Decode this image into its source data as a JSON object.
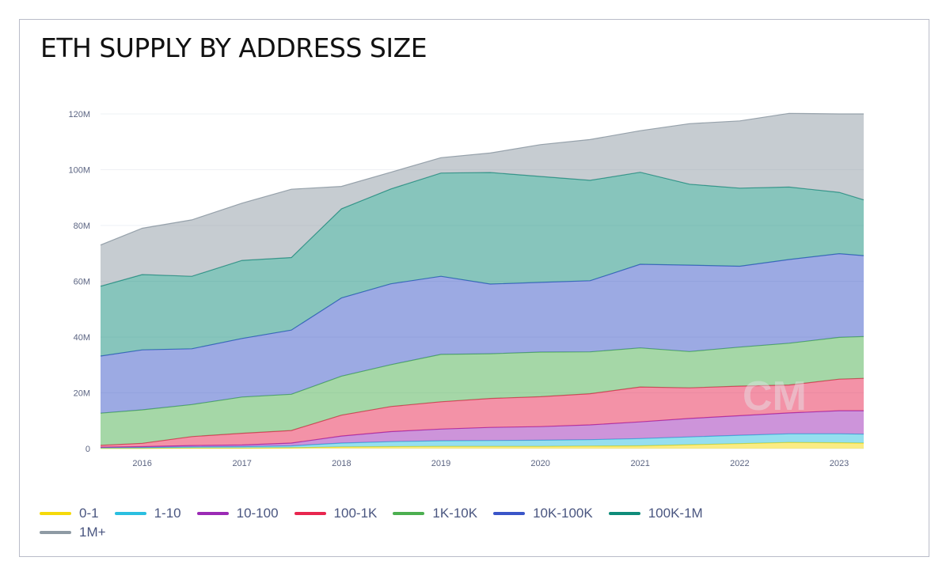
{
  "chart_data": {
    "type": "area",
    "stacked": true,
    "title": "ETH SUPPLY BY ADDRESS SIZE",
    "xlabel": "",
    "ylabel": "",
    "x_ticks": [
      "2016",
      "2017",
      "2018",
      "2019",
      "2020",
      "2021",
      "2022",
      "2023"
    ],
    "y_ticks": [
      "0",
      "20M",
      "40M",
      "60M",
      "80M",
      "100M",
      "120M"
    ],
    "ylim": [
      0,
      120000000
    ],
    "grid": true,
    "legend_position": "bottom",
    "watermark": "CM",
    "x": [
      "2015-08",
      "2016-01",
      "2016-07",
      "2017-01",
      "2017-07",
      "2018-01",
      "2018-07",
      "2019-01",
      "2019-07",
      "2020-01",
      "2020-07",
      "2021-01",
      "2021-07",
      "2022-01",
      "2022-07",
      "2023-01",
      "2023-04"
    ],
    "series": [
      {
        "name": "0-1",
        "color": "#f5d90a",
        "values": [
          0.1,
          0.1,
          0.2,
          0.2,
          0.3,
          0.6,
          0.7,
          0.8,
          0.8,
          0.8,
          0.9,
          1.0,
          1.4,
          1.8,
          2.2,
          2.1,
          2.0
        ]
      },
      {
        "name": "1-10",
        "color": "#2bbfe0",
        "values": [
          0.2,
          0.3,
          0.4,
          0.5,
          0.7,
          1.4,
          1.8,
          2.0,
          2.1,
          2.2,
          2.3,
          2.6,
          2.8,
          3.0,
          3.1,
          3.2,
          3.2
        ]
      },
      {
        "name": "10-100",
        "color": "#9b2ab5",
        "values": [
          0.2,
          0.3,
          0.5,
          0.6,
          1.0,
          2.5,
          3.6,
          4.2,
          4.7,
          4.9,
          5.3,
          6.0,
          6.6,
          7.0,
          7.5,
          8.3,
          8.4
        ]
      },
      {
        "name": "100-1K",
        "color": "#e8264f",
        "values": [
          0.7,
          1.2,
          3.2,
          4.2,
          4.5,
          7.5,
          9.0,
          9.8,
          10.4,
          10.7,
          11.2,
          12.5,
          11.0,
          10.6,
          10.0,
          11.3,
          11.6
        ]
      },
      {
        "name": "1K-10K",
        "color": "#4caf50",
        "values": [
          11.5,
          12.0,
          11.5,
          13.0,
          13.0,
          14.0,
          15.0,
          17.0,
          16.0,
          16.0,
          15.0,
          14.0,
          13.0,
          14.0,
          15.0,
          15.0,
          15.0
        ]
      },
      {
        "name": "10K-100K",
        "color": "#3a55c8",
        "values": [
          20.5,
          21.5,
          20.0,
          21.0,
          23.0,
          28.0,
          29.0,
          28.0,
          25.0,
          25.0,
          25.5,
          30.0,
          31.0,
          29.0,
          30.0,
          30.0,
          29.0
        ]
      },
      {
        "name": "100K-1M",
        "color": "#0f8c7a",
        "values": [
          25.0,
          27.0,
          26.0,
          28.0,
          26.0,
          32.0,
          34.0,
          37.0,
          40.0,
          38.0,
          36.0,
          33.0,
          29.0,
          28.0,
          26.0,
          22.0,
          20.0
        ]
      },
      {
        "name": "1M+",
        "color": "#8e9aa4",
        "values": [
          14.8,
          16.6,
          20.2,
          20.5,
          24.5,
          8.0,
          6.0,
          5.5,
          7.0,
          11.4,
          14.6,
          14.9,
          21.7,
          24.1,
          26.4,
          28.1,
          30.8
        ]
      }
    ],
    "value_unit": "M"
  }
}
